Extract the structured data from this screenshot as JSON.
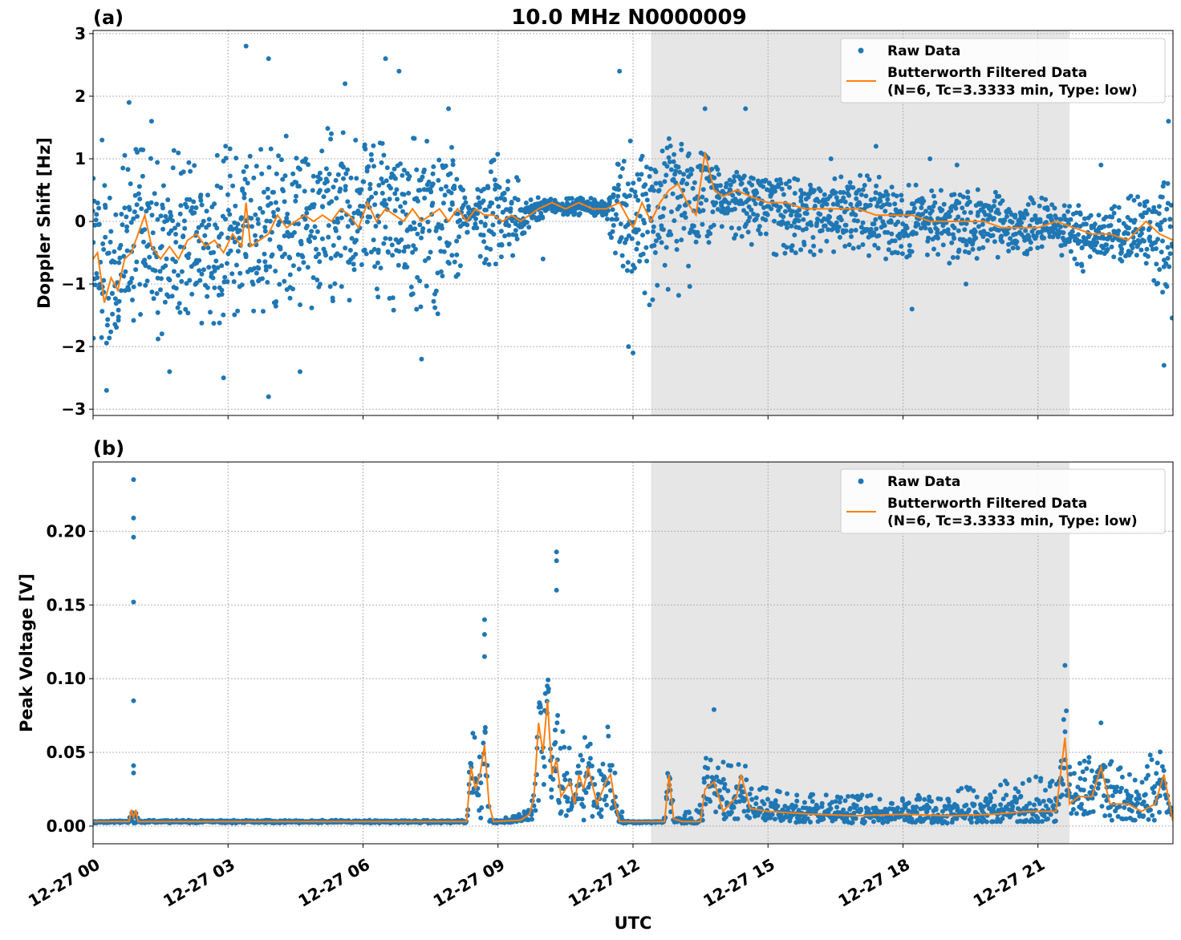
{
  "figure": {
    "title": "10.0 MHz N0000009",
    "xlabel": "UTC",
    "x_ticks": [
      "12-27 00",
      "12-27 03",
      "12-27 06",
      "12-27 09",
      "12-27 12",
      "12-27 15",
      "12-27 18",
      "12-27 21"
    ]
  },
  "chart_data": [
    {
      "type": "scatter",
      "panel_label": "(a)",
      "title": "10.0 MHz N0000009",
      "xlabel": "",
      "ylabel": "Doppler Shift [Hz]",
      "x_unit": "hours UTC since 12-27 00",
      "xlim": [
        0,
        24
      ],
      "ylim": [
        -3.1,
        3.05
      ],
      "y_ticks": [
        -3,
        -2,
        -1,
        0,
        1,
        2,
        3
      ],
      "y_tick_labels": [
        "−3",
        "−2",
        "−1",
        "0",
        "1",
        "2",
        "3"
      ],
      "grid": true,
      "shaded_interval": [
        12.4,
        21.7
      ],
      "legend_position": "top-right",
      "series": [
        {
          "name": "Raw Data",
          "kind": "scatter-band",
          "color": "#1f77b4",
          "x": [
            0.0,
            0.5,
            1.0,
            1.5,
            2.0,
            2.5,
            3.0,
            3.5,
            4.0,
            4.5,
            5.0,
            5.5,
            6.0,
            6.5,
            7.0,
            7.5,
            8.0,
            8.4,
            8.7,
            9.0,
            9.4,
            9.8,
            10.2,
            10.6,
            11.0,
            11.4,
            11.8,
            12.2,
            12.6,
            13.0,
            13.4,
            13.8,
            14.2,
            14.6,
            15.0,
            15.5,
            16.0,
            16.5,
            17.0,
            17.5,
            18.0,
            18.5,
            19.0,
            19.5,
            20.0,
            20.5,
            21.0,
            21.5,
            22.0,
            22.5,
            23.0,
            23.5,
            24.0
          ],
          "y_upper": [
            0.7,
            1.0,
            1.2,
            1.2,
            1.1,
            1.2,
            1.3,
            1.2,
            1.4,
            1.5,
            1.5,
            1.5,
            1.5,
            1.6,
            1.5,
            1.4,
            1.3,
            0.1,
            1.0,
            1.1,
            0.9,
            0.4,
            0.4,
            0.4,
            0.4,
            0.3,
            1.3,
            1.5,
            1.5,
            1.4,
            1.2,
            0.9,
            0.8,
            0.8,
            0.8,
            0.7,
            0.7,
            0.7,
            0.8,
            0.7,
            0.6,
            0.6,
            0.5,
            0.6,
            0.5,
            0.5,
            0.4,
            0.3,
            0.3,
            0.3,
            0.4,
            0.5,
            1.4
          ],
          "y_lower": [
            -2.4,
            -2.1,
            -1.9,
            -1.9,
            -1.8,
            -1.8,
            -1.7,
            -1.6,
            -1.4,
            -1.4,
            -1.4,
            -1.4,
            -1.4,
            -1.5,
            -1.5,
            -1.5,
            -1.5,
            0.1,
            -1.0,
            -0.9,
            -0.6,
            0.0,
            0.1,
            0.1,
            0.1,
            0.0,
            -1.3,
            -1.6,
            -1.3,
            -1.2,
            -1.0,
            -0.1,
            -0.3,
            -0.4,
            -0.5,
            -0.6,
            -0.6,
            -0.6,
            -0.6,
            -0.6,
            -0.6,
            -0.6,
            -0.7,
            -0.6,
            -0.6,
            -0.6,
            -0.5,
            -0.6,
            -0.8,
            -0.8,
            -0.6,
            -0.8,
            -1.8
          ],
          "outliers_x": [
            0.2,
            0.8,
            1.3,
            3.4,
            3.9,
            5.6,
            6.5,
            6.8,
            7.9,
            11.7,
            13.6,
            14.5,
            16.4,
            17.4,
            18.6,
            19.2,
            22.4,
            23.9,
            0.3,
            1.7,
            2.9,
            3.9,
            4.6,
            7.3,
            10.0,
            11.9,
            12.0,
            18.2,
            19.4,
            23.8
          ],
          "outliers_y": [
            1.3,
            1.9,
            1.6,
            2.8,
            2.6,
            2.2,
            2.6,
            2.4,
            1.8,
            2.4,
            1.8,
            1.8,
            1.0,
            1.2,
            1.0,
            0.9,
            0.9,
            1.6,
            -2.7,
            -2.4,
            -2.5,
            -2.8,
            -2.4,
            -2.2,
            -0.6,
            -2.0,
            -2.1,
            -1.4,
            -1.0,
            -2.3
          ]
        },
        {
          "name": "Butterworth Filtered Data\n(N=6, Tc=3.3333 min, Type: low)",
          "kind": "line",
          "color": "#ff7f0e",
          "x": [
            0.0,
            0.1,
            0.25,
            0.4,
            0.55,
            0.7,
            0.85,
            1.0,
            1.15,
            1.3,
            1.5,
            1.7,
            1.9,
            2.1,
            2.3,
            2.5,
            2.7,
            2.9,
            3.1,
            3.3,
            3.4,
            3.5,
            3.7,
            3.9,
            4.1,
            4.3,
            4.5,
            4.7,
            4.9,
            5.1,
            5.3,
            5.5,
            5.7,
            5.9,
            6.1,
            6.3,
            6.5,
            6.7,
            6.9,
            7.1,
            7.3,
            7.5,
            7.7,
            7.9,
            8.1,
            8.3,
            8.5,
            8.7,
            8.9,
            9.1,
            9.3,
            9.5,
            9.7,
            9.9,
            10.2,
            10.5,
            10.8,
            11.1,
            11.4,
            11.7,
            12.0,
            12.2,
            12.4,
            12.6,
            12.8,
            13.0,
            13.2,
            13.4,
            13.6,
            13.8,
            14.0,
            14.3,
            14.6,
            15.0,
            15.4,
            15.8,
            16.2,
            16.6,
            17.0,
            17.4,
            17.8,
            18.2,
            18.6,
            19.0,
            19.4,
            19.8,
            20.2,
            20.6,
            21.0,
            21.4,
            21.8,
            22.2,
            22.6,
            23.0,
            23.4,
            23.7,
            24.0
          ],
          "y": [
            -0.6,
            -0.5,
            -1.3,
            -0.9,
            -1.1,
            -0.6,
            -0.5,
            -0.2,
            0.1,
            -0.4,
            -0.6,
            -0.4,
            -0.6,
            -0.3,
            -0.2,
            -0.4,
            -0.3,
            -0.5,
            -0.2,
            -0.4,
            0.3,
            -0.4,
            -0.3,
            -0.2,
            0.1,
            -0.1,
            0.0,
            0.1,
            0.0,
            0.1,
            0.0,
            0.2,
            0.1,
            -0.1,
            0.3,
            0.0,
            0.2,
            0.1,
            0.0,
            0.2,
            0.0,
            0.1,
            0.2,
            0.0,
            0.2,
            0.0,
            0.2,
            0.1,
            0.1,
            0.0,
            0.1,
            0.0,
            0.1,
            0.2,
            0.3,
            0.2,
            0.3,
            0.2,
            0.2,
            0.3,
            -0.1,
            0.3,
            0.0,
            0.3,
            0.5,
            0.6,
            0.3,
            0.1,
            1.1,
            0.5,
            0.4,
            0.5,
            0.4,
            0.3,
            0.3,
            0.2,
            0.2,
            0.2,
            0.2,
            0.1,
            0.1,
            0.1,
            0.0,
            0.0,
            0.0,
            0.0,
            -0.1,
            -0.1,
            -0.1,
            0.0,
            -0.1,
            -0.2,
            -0.2,
            -0.3,
            0.0,
            -0.2,
            -0.3
          ]
        }
      ]
    },
    {
      "type": "scatter",
      "panel_label": "(b)",
      "title": "",
      "xlabel": "UTC",
      "ylabel": "Peak Voltage [V]",
      "x_unit": "hours UTC since 12-27 00",
      "xlim": [
        0,
        24
      ],
      "ylim": [
        -0.012,
        0.247
      ],
      "y_ticks": [
        0.0,
        0.05,
        0.1,
        0.15,
        0.2
      ],
      "y_tick_labels": [
        "0.00",
        "0.05",
        "0.10",
        "0.15",
        "0.20"
      ],
      "grid": true,
      "shaded_interval": [
        12.4,
        21.7
      ],
      "legend_position": "top-right",
      "series": [
        {
          "name": "Raw Data",
          "kind": "scatter-band",
          "color": "#1f77b4",
          "x": [
            0.0,
            0.8,
            0.9,
            1.0,
            8.3,
            8.4,
            8.5,
            8.6,
            8.7,
            8.8,
            9.0,
            9.6,
            9.8,
            9.9,
            10.0,
            10.2,
            10.3,
            10.4,
            10.6,
            10.8,
            11.0,
            11.2,
            11.3,
            11.5,
            11.6,
            11.8,
            12.0,
            12.7,
            12.8,
            12.9,
            13.1,
            13.4,
            13.5,
            13.7,
            13.9,
            14.1,
            14.3,
            14.4,
            14.6,
            15.0,
            16.0,
            17.0,
            18.0,
            19.0,
            20.0,
            20.8,
            21.4,
            21.6,
            21.7,
            21.9,
            22.2,
            22.4,
            22.7,
            23.0,
            23.3,
            23.5,
            23.7,
            24.0
          ],
          "y_upper": [
            0.003,
            0.004,
            0.012,
            0.004,
            0.004,
            0.08,
            0.06,
            0.05,
            0.075,
            0.004,
            0.004,
            0.01,
            0.025,
            0.1,
            0.12,
            0.11,
            0.105,
            0.07,
            0.055,
            0.06,
            0.07,
            0.04,
            0.06,
            0.07,
            0.05,
            0.004,
            0.003,
            0.003,
            0.044,
            0.004,
            0.01,
            0.01,
            0.062,
            0.05,
            0.04,
            0.055,
            0.04,
            0.06,
            0.03,
            0.025,
            0.022,
            0.022,
            0.02,
            0.025,
            0.03,
            0.035,
            0.03,
            0.085,
            0.04,
            0.05,
            0.065,
            0.04,
            0.05,
            0.04,
            0.035,
            0.05,
            0.065,
            0.004
          ],
          "y_lower": [
            0.002,
            0.002,
            0.002,
            0.002,
            0.002,
            0.005,
            0.004,
            0.005,
            0.004,
            0.002,
            0.002,
            0.003,
            0.003,
            0.01,
            0.012,
            0.01,
            0.006,
            0.004,
            0.004,
            0.004,
            0.003,
            0.004,
            0.004,
            0.004,
            0.004,
            0.002,
            0.002,
            0.002,
            0.004,
            0.002,
            0.002,
            0.002,
            0.004,
            0.004,
            0.004,
            0.004,
            0.004,
            0.004,
            0.003,
            0.003,
            0.002,
            0.002,
            0.002,
            0.002,
            0.003,
            0.003,
            0.003,
            0.004,
            0.004,
            0.004,
            0.004,
            0.004,
            0.004,
            0.004,
            0.004,
            0.004,
            0.004,
            0.002
          ],
          "outliers_x": [
            0.9,
            0.9,
            0.9,
            0.9,
            0.9,
            0.9,
            0.9,
            8.7,
            8.7,
            8.7,
            10.3,
            10.3,
            10.3,
            13.8,
            21.6,
            22.4
          ],
          "outliers_y": [
            0.235,
            0.209,
            0.196,
            0.152,
            0.085,
            0.041,
            0.036,
            0.14,
            0.13,
            0.115,
            0.186,
            0.18,
            0.16,
            0.079,
            0.109,
            0.07
          ]
        },
        {
          "name": "Butterworth Filtered Data\n(N=6, Tc=3.3333 min, Type: low)",
          "kind": "line",
          "color": "#ff7f0e",
          "x": [
            0.0,
            0.8,
            0.85,
            0.9,
            0.95,
            1.0,
            2.0,
            4.0,
            6.0,
            8.0,
            8.3,
            8.4,
            8.5,
            8.6,
            8.7,
            8.8,
            8.9,
            9.5,
            9.7,
            9.8,
            9.9,
            10.0,
            10.1,
            10.2,
            10.3,
            10.4,
            10.5,
            10.6,
            10.7,
            10.8,
            10.9,
            11.0,
            11.2,
            11.4,
            11.5,
            11.6,
            11.7,
            12.0,
            12.7,
            12.8,
            12.9,
            13.1,
            13.5,
            13.6,
            13.8,
            14.0,
            14.3,
            14.4,
            14.6,
            15.0,
            16.0,
            17.0,
            18.0,
            19.0,
            20.0,
            20.8,
            21.4,
            21.6,
            21.7,
            21.9,
            22.2,
            22.4,
            22.6,
            23.0,
            23.3,
            23.6,
            23.8,
            24.0
          ],
          "y": [
            0.003,
            0.003,
            0.011,
            0.006,
            0.011,
            0.003,
            0.003,
            0.003,
            0.003,
            0.003,
            0.003,
            0.04,
            0.025,
            0.035,
            0.055,
            0.015,
            0.003,
            0.004,
            0.008,
            0.02,
            0.07,
            0.05,
            0.085,
            0.035,
            0.045,
            0.02,
            0.025,
            0.03,
            0.015,
            0.035,
            0.025,
            0.04,
            0.015,
            0.03,
            0.035,
            0.015,
            0.003,
            0.003,
            0.003,
            0.035,
            0.005,
            0.003,
            0.003,
            0.025,
            0.03,
            0.01,
            0.02,
            0.035,
            0.012,
            0.01,
            0.008,
            0.007,
            0.008,
            0.007,
            0.008,
            0.01,
            0.01,
            0.06,
            0.015,
            0.02,
            0.02,
            0.04,
            0.015,
            0.015,
            0.01,
            0.015,
            0.035,
            0.003
          ]
        }
      ]
    }
  ]
}
